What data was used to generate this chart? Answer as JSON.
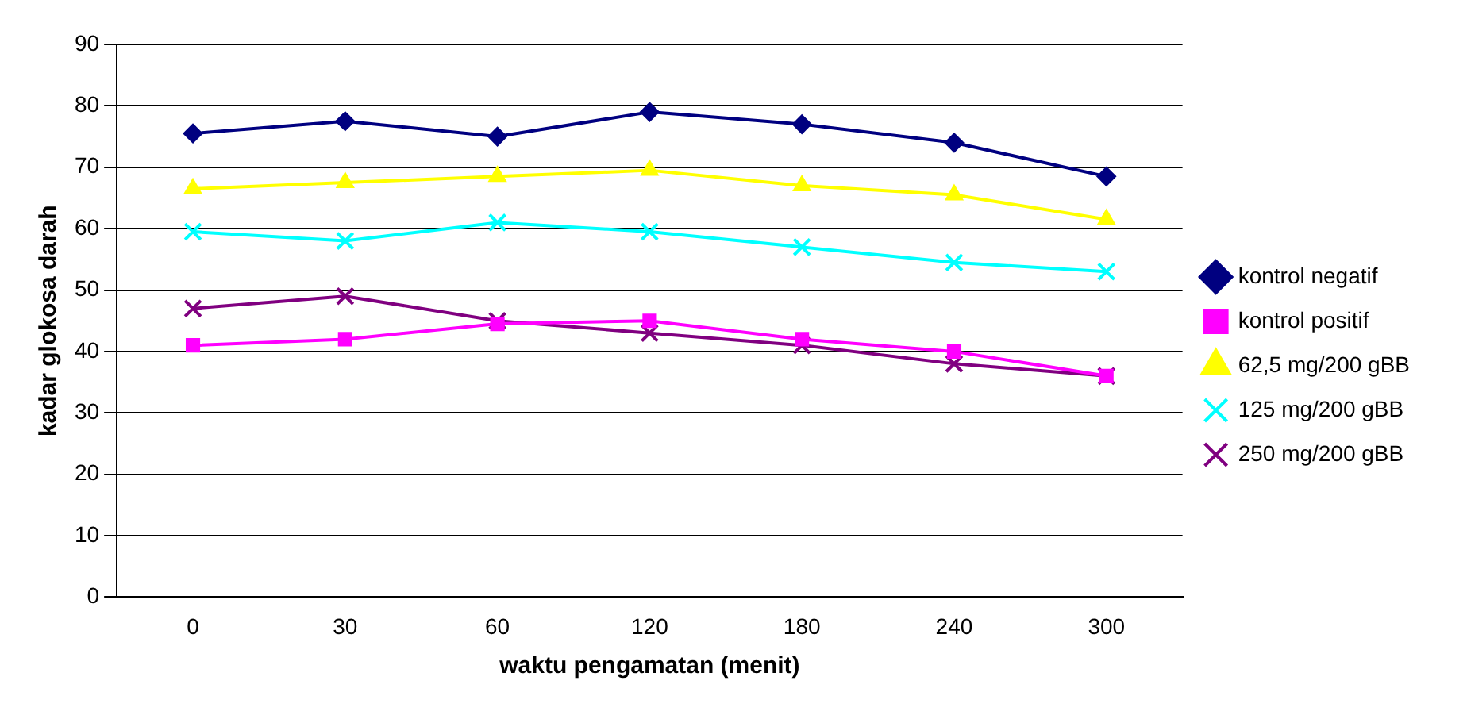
{
  "chart_data": {
    "type": "line",
    "xlabel": "waktu pengamatan (menit)",
    "ylabel": "kadar glokosa darah",
    "categories": [
      "0",
      "30",
      "60",
      "120",
      "180",
      "240",
      "300"
    ],
    "series": [
      {
        "name": "kontrol negatif",
        "color": "#000080",
        "marker": "diamond",
        "values": [
          75.5,
          77.5,
          75,
          79,
          77,
          74,
          68.5
        ]
      },
      {
        "name": "kontrol positif",
        "color": "#ff00ff",
        "marker": "square",
        "values": [
          41,
          42,
          44.5,
          45,
          42,
          40,
          36
        ]
      },
      {
        "name": "62,5 mg/200 gBB",
        "color": "#ffff00",
        "marker": "triangle",
        "values": [
          66.5,
          67.5,
          68.5,
          69.5,
          67,
          65.5,
          61.5
        ]
      },
      {
        "name": "125 mg/200 gBB",
        "color": "#00ffff",
        "marker": "cross",
        "values": [
          59.5,
          58,
          61,
          59.5,
          57,
          54.5,
          53
        ]
      },
      {
        "name": "250 mg/200 gBB",
        "color": "#800080",
        "marker": "cross",
        "values": [
          47,
          49,
          45,
          43,
          41,
          38,
          36
        ]
      }
    ],
    "ylim": [
      0,
      90
    ],
    "yticks": [
      0,
      10,
      20,
      30,
      40,
      50,
      60,
      70,
      80,
      90
    ],
    "grid": "y",
    "legend": "right",
    "line_style": "solid"
  }
}
